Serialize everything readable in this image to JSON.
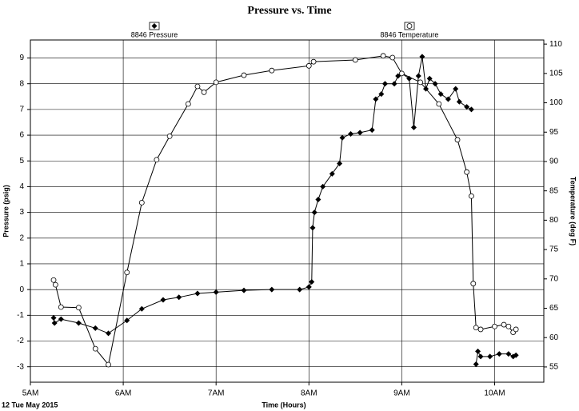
{
  "chart_data": {
    "type": "line",
    "title": "Pressure vs. Time",
    "x_label": "Time (Hours)",
    "date_label": "12 Tue May 2015",
    "y_label": "Pressure (psig)",
    "y2_label": "Temperature (deg F)",
    "xlim": [
      5,
      10.53
    ],
    "xticks": [
      {
        "value": 5,
        "label": "5AM"
      },
      {
        "value": 6,
        "label": "6AM"
      },
      {
        "value": 7,
        "label": "7AM"
      },
      {
        "value": 8,
        "label": "8AM"
      },
      {
        "value": 9,
        "label": "9AM"
      },
      {
        "value": 10,
        "label": "10AM"
      }
    ],
    "ylim": [
      -3.6,
      9.7
    ],
    "yticks": [
      -3,
      -2,
      -1,
      0,
      1,
      2,
      3,
      4,
      5,
      6,
      7,
      8,
      9
    ],
    "y2lim": [
      52.4,
      110.7
    ],
    "y2ticks": [
      55,
      60,
      65,
      70,
      75,
      80,
      85,
      90,
      95,
      100,
      105,
      110
    ],
    "grid": true,
    "series": [
      {
        "name": "8846 Pressure",
        "color": "#000000",
        "marker": "diamond",
        "x": [
          5.25,
          5.26,
          5.33,
          5.52,
          5.7,
          5.84,
          6.04,
          6.2,
          6.43,
          6.6,
          6.8,
          7.0,
          7.3,
          7.6,
          7.9,
          8.0,
          8.03,
          8.04,
          8.06,
          8.1,
          8.15,
          8.25,
          8.33,
          8.36,
          8.45,
          8.55,
          8.68,
          8.72,
          8.78,
          8.82,
          8.92,
          8.96,
          9.0,
          9.08,
          9.13,
          9.18,
          9.22,
          9.26,
          9.3,
          9.36,
          9.42,
          9.5,
          9.58,
          9.62,
          9.7,
          9.75,
          9.77,
          9.8,
          9.82,
          9.85,
          9.95,
          10.05,
          10.15,
          10.2,
          10.23
        ],
        "values": [
          -1.1,
          -1.3,
          -1.15,
          -1.3,
          -1.5,
          -1.7,
          -1.2,
          -0.75,
          -0.4,
          -0.3,
          -0.15,
          -0.1,
          -0.03,
          0.0,
          0.0,
          0.1,
          0.3,
          2.4,
          3.0,
          3.5,
          4.0,
          4.5,
          4.9,
          5.9,
          6.05,
          6.1,
          6.2,
          7.4,
          7.6,
          8.0,
          8.0,
          8.3,
          8.4,
          8.2,
          6.3,
          8.3,
          9.05,
          7.8,
          8.2,
          8.0,
          7.6,
          7.4,
          7.8,
          7.3,
          7.1,
          7.0,
          null,
          -2.9,
          -2.4,
          -2.6,
          -2.6,
          -2.5,
          -2.5,
          -2.6,
          -2.55
        ]
      },
      {
        "name": "8846 Temperature",
        "color": "#000000",
        "marker": "circle",
        "axis": "y2",
        "x": [
          5.25,
          5.27,
          5.33,
          5.52,
          5.7,
          5.84,
          6.04,
          6.2,
          6.36,
          6.5,
          6.7,
          6.8,
          6.87,
          7.0,
          7.3,
          7.6,
          8.0,
          8.05,
          8.5,
          8.8,
          8.9,
          9.0,
          9.2,
          9.4,
          9.6,
          9.7,
          9.75,
          9.77,
          9.8,
          9.85,
          10.0,
          10.1,
          10.15,
          10.2,
          10.23
        ],
        "values": [
          69.8,
          69.0,
          65.2,
          65.1,
          58.1,
          55.4,
          71.1,
          83.0,
          90.3,
          94.3,
          99.8,
          102.8,
          101.8,
          103.5,
          104.7,
          105.5,
          106.3,
          107.0,
          107.3,
          108.0,
          107.7,
          105.0,
          103.5,
          99.8,
          93.7,
          88.2,
          84.1,
          69.2,
          61.7,
          61.4,
          61.9,
          62.2,
          61.9,
          60.9,
          61.4
        ]
      }
    ]
  }
}
